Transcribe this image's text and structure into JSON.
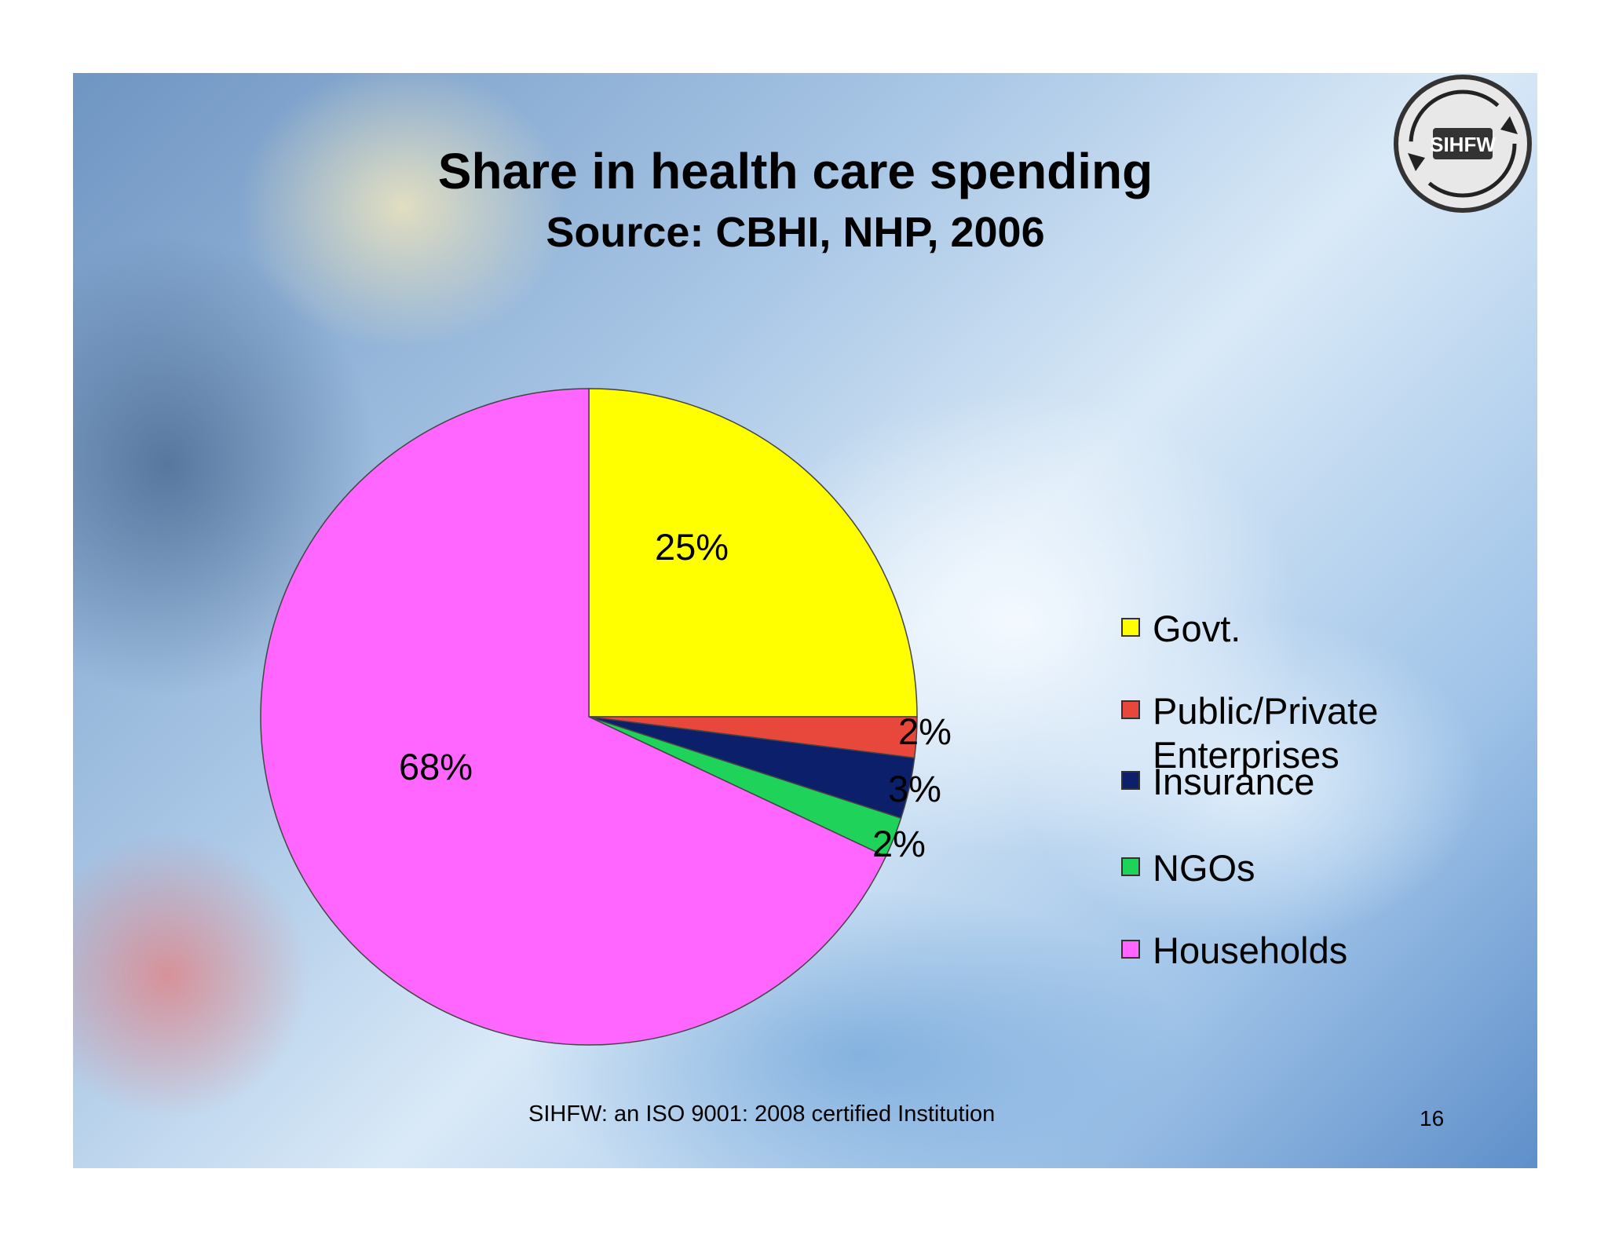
{
  "slide": {
    "title": "Share in health care spending",
    "subtitle": "Source: CBHI, NHP, 2006",
    "footer": "SIHFW: an ISO 9001: 2008 certified Institution",
    "page_number": "16",
    "logo_text": "SIHFW"
  },
  "chart_data": {
    "type": "pie",
    "title": "Share in health care spending",
    "subtitle": "Source: CBHI, NHP, 2006",
    "legend_position": "right",
    "slices": [
      {
        "name": "Govt.",
        "value": 25,
        "label": "25%",
        "color": "#ffff00"
      },
      {
        "name": "Public/Private Enterprises",
        "value": 2,
        "label": "2%",
        "color": "#e8473c"
      },
      {
        "name": "Insurance",
        "value": 3,
        "label": "3%",
        "color": "#0b1f6b"
      },
      {
        "name": "NGOs",
        "value": 2,
        "label": "2%",
        "color": "#1fd35a"
      },
      {
        "name": "Households",
        "value": 68,
        "label": "68%",
        "color": "#ff66ff"
      }
    ]
  }
}
